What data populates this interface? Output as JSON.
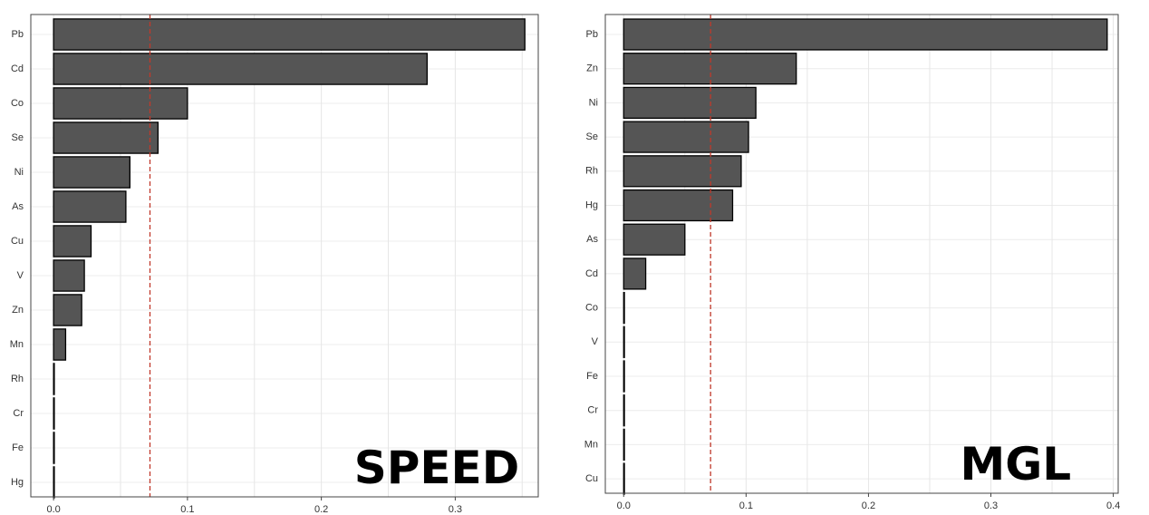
{
  "chart_data": [
    {
      "type": "bar",
      "orientation": "horizontal",
      "overlay_label": "SPEED",
      "categories": [
        "Pb",
        "Cd",
        "Co",
        "Se",
        "Ni",
        "As",
        "Cu",
        "V",
        "Zn",
        "Mn",
        "Rh",
        "Cr",
        "Fe",
        "Hg"
      ],
      "values": [
        0.352,
        0.279,
        0.1,
        0.078,
        0.057,
        0.054,
        0.028,
        0.023,
        0.021,
        0.009,
        0.0,
        0.0,
        0.0,
        0.0
      ],
      "xlim": [
        -0.017,
        0.362
      ],
      "xticks": [
        0.0,
        0.1,
        0.2,
        0.3
      ],
      "xtick_labels": [
        "0.0",
        "0.1",
        "0.2",
        "0.3"
      ],
      "threshold": 0.072,
      "threshold_color": "#c0392b",
      "bar_color": "#555555",
      "grid": true,
      "title": "",
      "xlabel": "",
      "ylabel": ""
    },
    {
      "type": "bar",
      "orientation": "horizontal",
      "overlay_label": "MGL",
      "categories": [
        "Pb",
        "Zn",
        "Ni",
        "Se",
        "Rh",
        "Hg",
        "As",
        "Cd",
        "Co",
        "V",
        "Fe",
        "Cr",
        "Mn",
        "Cu"
      ],
      "values": [
        0.395,
        0.141,
        0.108,
        0.102,
        0.096,
        0.089,
        0.05,
        0.018,
        0.0,
        0.0,
        0.0,
        0.0,
        0.0,
        0.0
      ],
      "xlim": [
        -0.015,
        0.404
      ],
      "xticks": [
        0.0,
        0.1,
        0.2,
        0.3,
        0.4
      ],
      "xtick_labels": [
        "0.0",
        "0.1",
        "0.2",
        "0.3",
        "0.4"
      ],
      "threshold": 0.071,
      "threshold_color": "#c0392b",
      "bar_color": "#555555",
      "grid": true,
      "title": "",
      "xlabel": "",
      "ylabel": ""
    }
  ]
}
